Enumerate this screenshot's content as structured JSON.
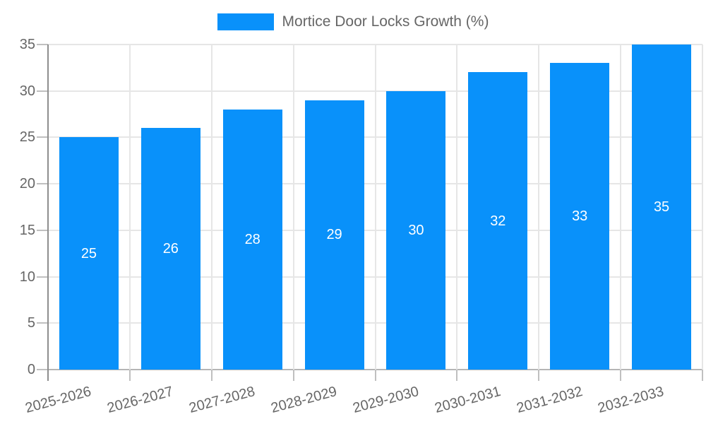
{
  "chart_data": {
    "type": "bar",
    "title": "Mortice Door Locks Growth (%)",
    "legend_position": "top",
    "categories": [
      "2025-2026",
      "2026-2027",
      "2027-2028",
      "2028-2029",
      "2029-2030",
      "2030-2031",
      "2031-2032",
      "2032-2033"
    ],
    "series": [
      {
        "name": "Mortice Door Locks Growth (%)",
        "values": [
          25,
          26,
          28,
          29,
          30,
          32,
          33,
          35
        ]
      }
    ],
    "xlabel": "",
    "ylabel": "",
    "ylim": [
      0,
      35
    ],
    "yticks": [
      0,
      5,
      10,
      15,
      20,
      25,
      30,
      35
    ],
    "grid": true,
    "show_value_labels": true,
    "x_label_rotation_deg": -15,
    "colors": {
      "bar": "#0991fa",
      "bar_label": "#ffffff",
      "tick_text": "#666666",
      "legend_text": "#666666",
      "grid": "#e6e6e6",
      "zero_line": "#b5b5b5",
      "axis": "#8e8e8e",
      "tick_mark": "#c0c0c0",
      "background": "#ffffff"
    }
  }
}
